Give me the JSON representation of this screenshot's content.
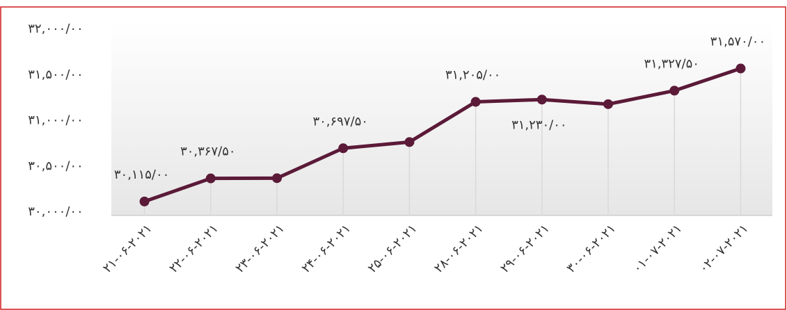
{
  "chart_data": {
    "type": "line",
    "categories": [
      "۲۱-۰۶-۲۰۲۱",
      "۲۲-۰۶-۲۰۲۱",
      "۲۳-۰۶-۲۰۲۱",
      "۲۴-۰۶-۲۰۲۱",
      "۲۵-۰۶-۲۰۲۱",
      "۲۸-۰۶-۲۰۲۱",
      "۲۹-۰۶-۲۰۲۱",
      "۳۰-۰۶-۲۰۲۱",
      "۰۱-۰۷-۲۰۲۱",
      "۰۲-۰۷-۲۰۲۱"
    ],
    "values": [
      30115,
      30367.5,
      30370,
      30697.5,
      30765,
      31205,
      31230,
      31180,
      31327.5,
      31570
    ],
    "value_labels": [
      "۳۰,۱۱۵/۰۰",
      "۳۰,۳۶۷/۵۰",
      null,
      "۳۰,۶۹۷/۵۰",
      null,
      "۳۱,۲۰۵/۰۰",
      "۳۱,۲۳۰/۰۰",
      null,
      "۳۱,۳۲۷/۵۰",
      "۳۱,۵۷۰/۰۰"
    ],
    "color": "#5b1a38",
    "ylim": [
      30000,
      32000
    ],
    "yticks": [
      {
        "value": 30000,
        "label": "۳۰,۰۰۰/۰۰"
      },
      {
        "value": 30500,
        "label": "۳۰,۵۰۰/۰۰"
      },
      {
        "value": 31000,
        "label": "۳۱,۰۰۰/۰۰"
      },
      {
        "value": 31500,
        "label": "۳۱,۵۰۰/۰۰"
      },
      {
        "value": 32000,
        "label": "۳۲,۰۰۰/۰۰"
      }
    ]
  }
}
